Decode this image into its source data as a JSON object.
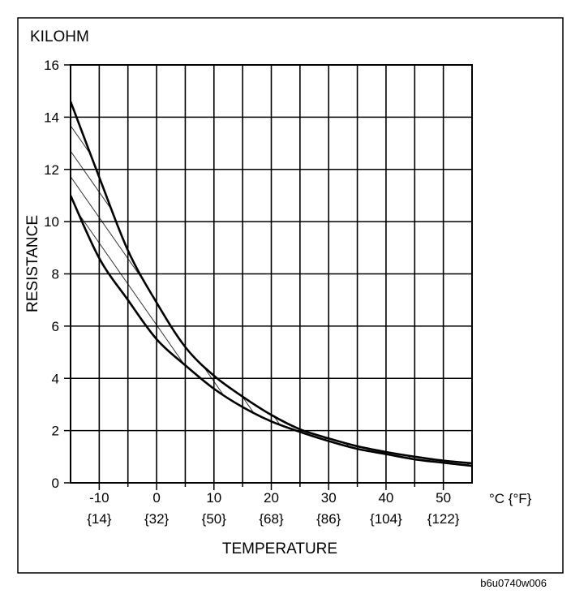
{
  "chart_data": {
    "type": "area",
    "title": "",
    "ylabel": "RESISTANCE",
    "yunit": "KILOHM",
    "xlabel": "TEMPERATURE",
    "xunit": "°C {°F}",
    "xlim": [
      -15,
      55
    ],
    "ylim": [
      0,
      16
    ],
    "grid": true,
    "x_ticks": [
      {
        "value": -10,
        "c": "-10",
        "f": "{14}"
      },
      {
        "value": 0,
        "c": "0",
        "f": "{32}"
      },
      {
        "value": 10,
        "c": "10",
        "f": "{50}"
      },
      {
        "value": 20,
        "c": "20",
        "f": "{68}"
      },
      {
        "value": 30,
        "c": "30",
        "f": "{86}"
      },
      {
        "value": 40,
        "c": "40",
        "f": "{104}"
      },
      {
        "value": 50,
        "c": "50",
        "f": "{122}"
      }
    ],
    "y_ticks": [
      "0",
      "2",
      "4",
      "6",
      "8",
      "10",
      "12",
      "14",
      "16"
    ],
    "band": {
      "x": [
        -15,
        -10,
        -5,
        0,
        5,
        10,
        15,
        20,
        25,
        30,
        35,
        40,
        45,
        50,
        55
      ],
      "upper": [
        14.6,
        11.7,
        8.9,
        6.9,
        5.2,
        4.1,
        3.3,
        2.6,
        2.05,
        1.7,
        1.4,
        1.18,
        1.0,
        0.85,
        0.75
      ],
      "lower": [
        11.0,
        8.6,
        7.0,
        5.5,
        4.5,
        3.6,
        2.9,
        2.35,
        1.95,
        1.6,
        1.3,
        1.1,
        0.9,
        0.77,
        0.65
      ]
    }
  },
  "figure_code": "b6u0740w006"
}
